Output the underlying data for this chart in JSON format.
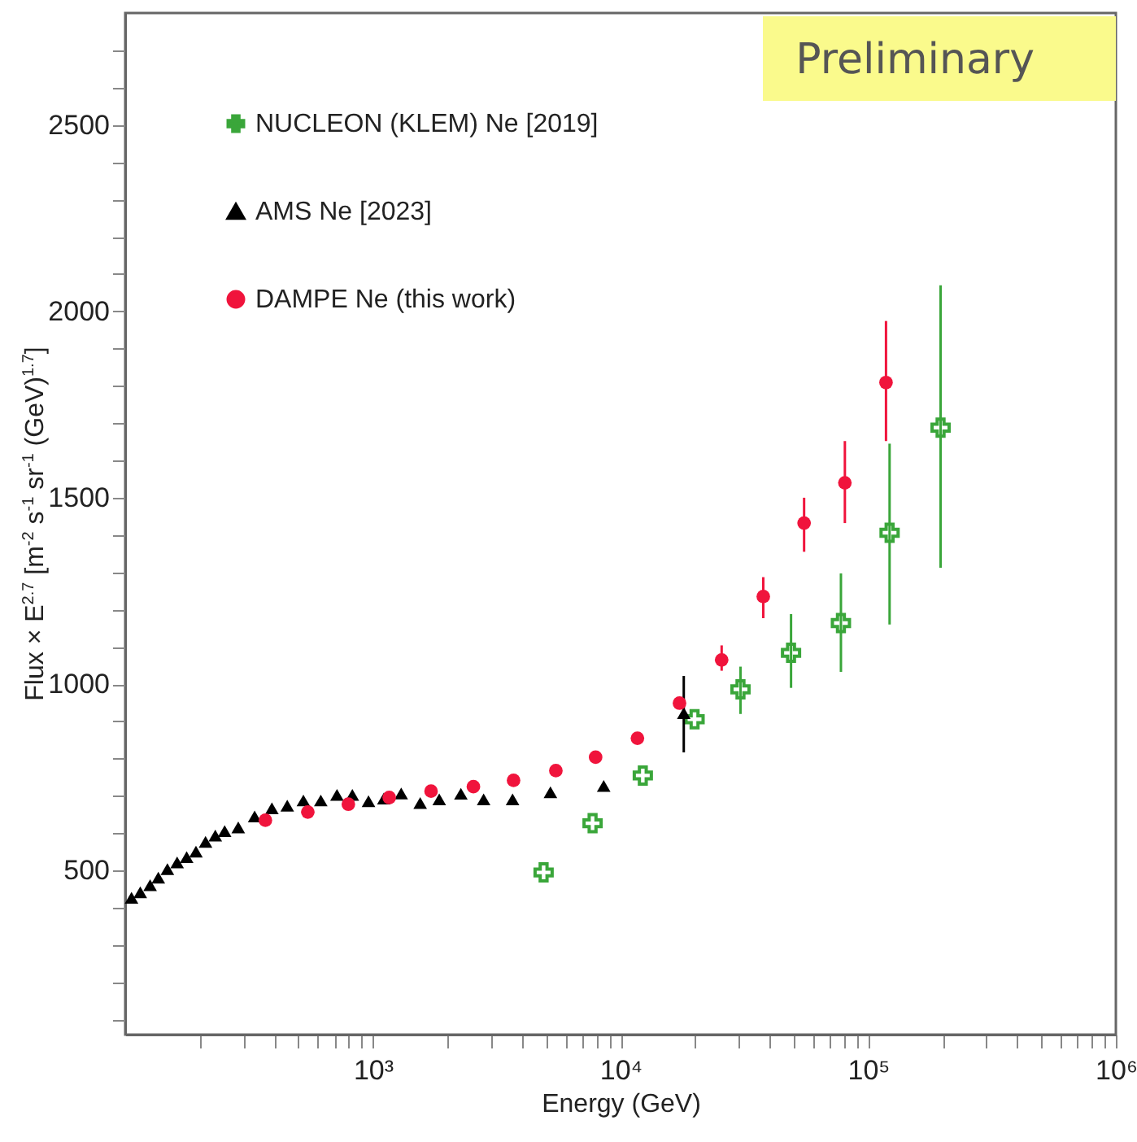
{
  "chart_data": {
    "type": "scatter",
    "xlabel": "Energy (GeV)",
    "ylabel": "Flux × E$^{2.7}$ [m$^{-2}$ s$^{-1}$ sr$^{-1}$ (GeV)$^{1.7}$]",
    "annotations": [
      "Preliminary"
    ],
    "log": "x",
    "legend": "top left",
    "xlim": [
      100,
      1000000
    ],
    "ylim": [
      60,
      2800
    ],
    "xticks": [
      {
        "value": 200,
        "label": null
      },
      {
        "value": 300,
        "label": null
      },
      {
        "value": 400,
        "label": null
      },
      {
        "value": 500,
        "label": null
      },
      {
        "value": 600,
        "label": null
      },
      {
        "value": 700,
        "label": null
      },
      {
        "value": 800,
        "label": null
      },
      {
        "value": 900,
        "label": null
      },
      {
        "value": 1000,
        "label": "10³"
      },
      {
        "value": 2000,
        "label": null
      },
      {
        "value": 3000,
        "label": null
      },
      {
        "value": 4000,
        "label": null
      },
      {
        "value": 5000,
        "label": null
      },
      {
        "value": 6000,
        "label": null
      },
      {
        "value": 7000,
        "label": null
      },
      {
        "value": 8000,
        "label": null
      },
      {
        "value": 9000,
        "label": null
      },
      {
        "value": 10000,
        "label": "10⁴"
      },
      {
        "value": 20000,
        "label": null
      },
      {
        "value": 30000,
        "label": null
      },
      {
        "value": 40000,
        "label": null
      },
      {
        "value": 50000,
        "label": null
      },
      {
        "value": 60000,
        "label": null
      },
      {
        "value": 70000,
        "label": null
      },
      {
        "value": 80000,
        "label": null
      },
      {
        "value": 90000,
        "label": null
      },
      {
        "value": 100000,
        "label": "10⁵"
      },
      {
        "value": 200000,
        "label": null
      },
      {
        "value": 300000,
        "label": null
      },
      {
        "value": 400000,
        "label": null
      },
      {
        "value": 500000,
        "label": null
      },
      {
        "value": 600000,
        "label": null
      },
      {
        "value": 700000,
        "label": null
      },
      {
        "value": 800000,
        "label": null
      },
      {
        "value": 900000,
        "label": null
      },
      {
        "value": 1000000,
        "label": "10⁶"
      }
    ],
    "yticks": [
      {
        "value": 100,
        "label": null
      },
      {
        "value": 200,
        "label": null
      },
      {
        "value": 300,
        "label": null
      },
      {
        "value": 400,
        "label": null
      },
      500,
      {
        "value": 600,
        "label": null
      },
      {
        "value": 700,
        "label": null
      },
      {
        "value": 800,
        "label": null
      },
      {
        "value": 900,
        "label": null
      },
      1000,
      {
        "value": 1100,
        "label": null
      },
      {
        "value": 1200,
        "label": null
      },
      {
        "value": 1300,
        "label": null
      },
      {
        "value": 1400,
        "label": null
      },
      1500,
      {
        "value": 1600,
        "label": null
      },
      {
        "value": 1700,
        "label": null
      },
      {
        "value": 1800,
        "label": null
      },
      {
        "value": 1900,
        "label": null
      },
      2000,
      {
        "value": 2100,
        "label": null
      },
      {
        "value": 2200,
        "label": null
      },
      {
        "value": 2300,
        "label": null
      },
      {
        "value": 2400,
        "label": null
      },
      2500,
      {
        "value": 2600,
        "label": null
      },
      {
        "value": 2700,
        "label": null
      }
    ],
    "series": [
      {
        "name": "NUCLEON (KLEM) Ne [2019]",
        "color": "#3aa63a",
        "marker": "cross",
        "x": [
          4890,
          7710,
          12300,
          19900,
          30500,
          48800,
          77600,
          122000,
          196000
        ],
        "values": [
          495,
          627,
          755,
          906,
          986,
          1084,
          1164,
          1406,
          1688
        ],
        "errors": [
          null,
          null,
          null,
          null,
          [
            920,
            1047
          ],
          [
            990,
            1188
          ],
          [
            1033,
            1297
          ],
          [
            1160,
            1645
          ],
          [
            1312,
            2070
          ]
        ]
      },
      {
        "name": "AMS Ne [2023]",
        "color": "#000000",
        "marker": "triangle",
        "x": [
          106,
          115,
          126,
          136,
          148,
          162,
          177,
          193,
          211,
          231,
          252,
          286,
          333,
          391,
          451,
          524,
          616,
          716,
          826,
          960,
          1107,
          1301,
          1552,
          1853,
          2266,
          2800,
          3664,
          5210,
          8550,
          18000
        ],
        "values": [
          427,
          442,
          461,
          481,
          504,
          522,
          536,
          551,
          577,
          594,
          606,
          616,
          645,
          667,
          674,
          688,
          688,
          703,
          703,
          686,
          693,
          707,
          681,
          691,
          706,
          691,
          691,
          710,
          727,
          922
        ],
        "errors": [
          null,
          null,
          null,
          null,
          null,
          null,
          null,
          null,
          null,
          null,
          null,
          null,
          null,
          null,
          null,
          null,
          null,
          null,
          null,
          null,
          null,
          null,
          null,
          null,
          null,
          null,
          null,
          null,
          null,
          [
            817,
            1022
          ]
        ]
      },
      {
        "name": "DAMPE Ne (this work)",
        "color": "#f0143c",
        "marker": "circle",
        "x": [
          368,
          546,
          796,
          1164,
          1717,
          2546,
          3698,
          5480,
          7930,
          11700,
          17300,
          25600,
          37700,
          55100,
          80500,
          118000
        ],
        "values": [
          635,
          657,
          678,
          696,
          713,
          725,
          742,
          768,
          804,
          855,
          949,
          1065,
          1235,
          1432,
          1540,
          1809
        ],
        "errors": [
          null,
          null,
          null,
          null,
          null,
          null,
          null,
          null,
          null,
          null,
          null,
          [
            1036,
            1104
          ],
          [
            1177,
            1287
          ],
          [
            1355,
            1500
          ],
          [
            1432,
            1652
          ],
          [
            1652,
            1974
          ]
        ]
      }
    ]
  }
}
